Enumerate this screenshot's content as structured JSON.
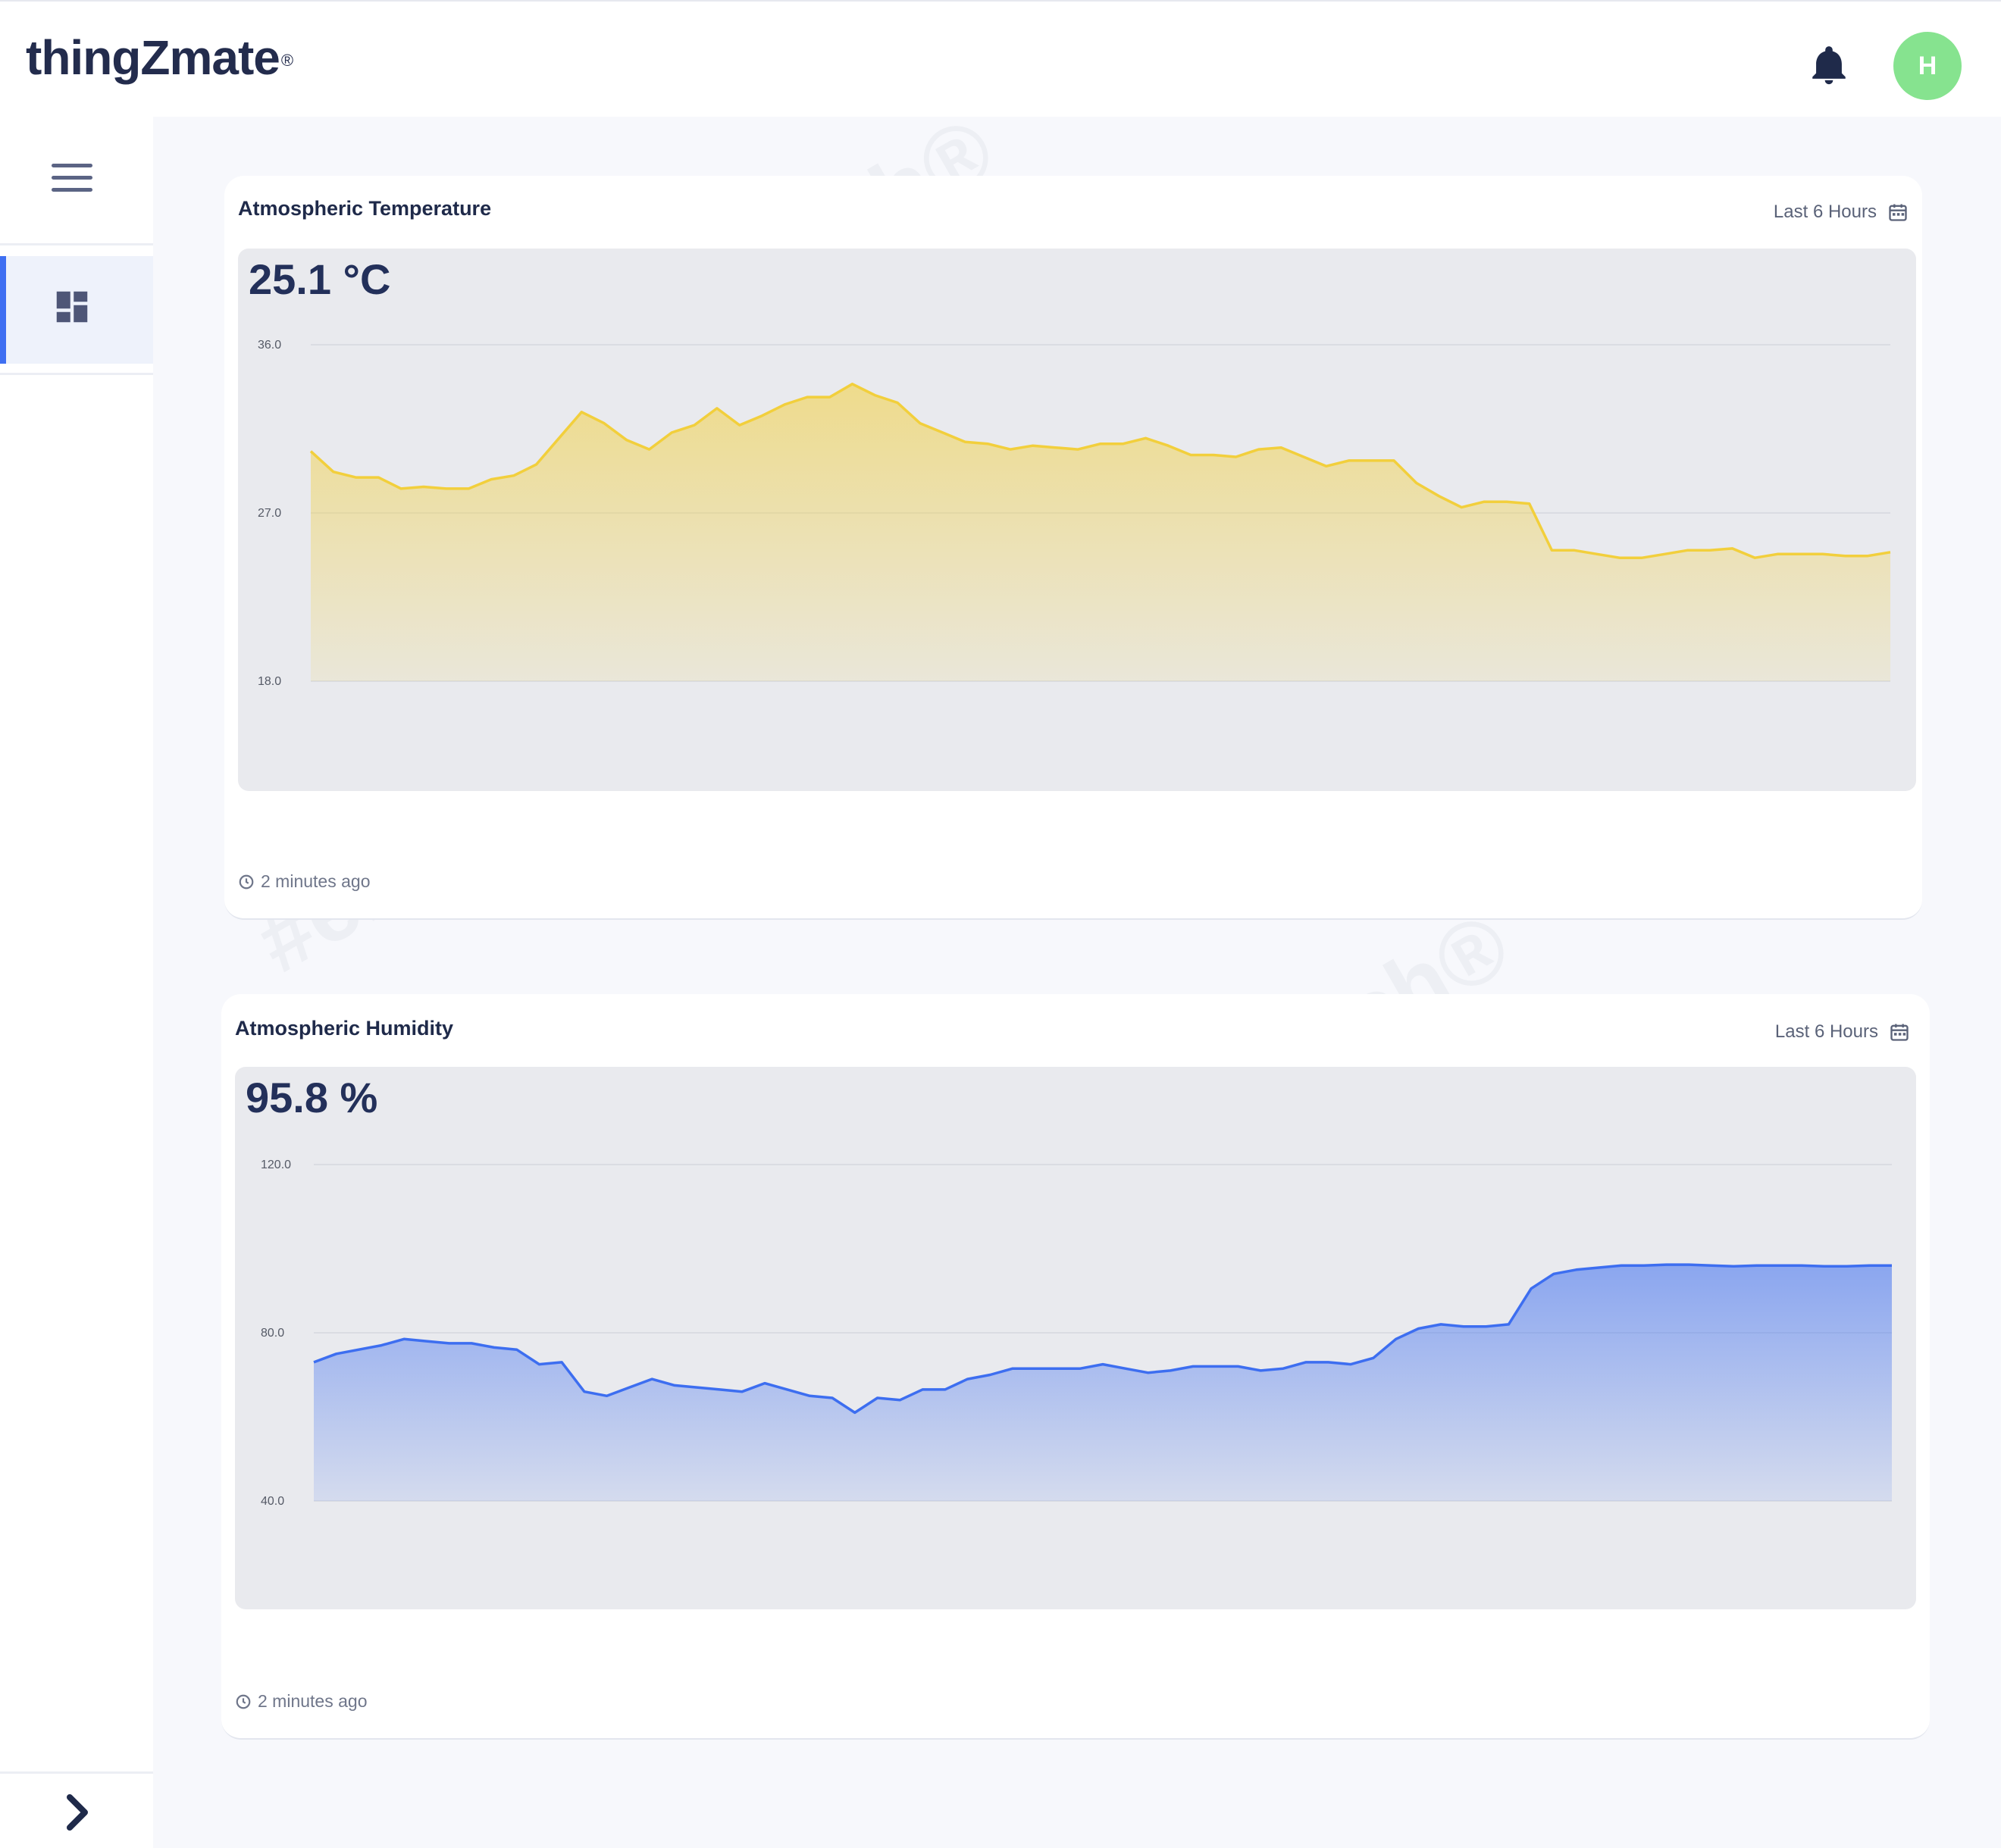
{
  "header": {
    "logo_text": "thingZmate",
    "logo_mark": "®",
    "bell_icon": "bell-icon",
    "avatar_initial": "H",
    "avatar_color": "#86e38f"
  },
  "sidebar": {
    "menu_icon": "hamburger-menu-icon",
    "items": [
      {
        "icon": "dashboard-icon",
        "active": true
      }
    ],
    "expand_icon": "chevron-right-icon"
  },
  "watermark": "#enthutech®",
  "cards": [
    {
      "title": "Atmospheric Temperature",
      "range_label": "Last 6 Hours",
      "value": "25.1 °C",
      "updated": "2 minutes ago",
      "color": "#f2cf3c",
      "chart_data": {
        "type": "area",
        "title": "Atmospheric Temperature",
        "ylim": [
          18.0,
          36.0
        ],
        "yticks": [
          "36.0",
          "27.0",
          "18.0"
        ],
        "grid": true,
        "series": [
          {
            "values": [
              30.3,
              29.2,
              28.9,
              28.9,
              28.3,
              28.4,
              28.3,
              28.3,
              28.8,
              29.0,
              29.6,
              31.0,
              32.4,
              31.8,
              30.9,
              30.4,
              31.3,
              31.7,
              32.6,
              31.7,
              32.2,
              32.8,
              33.2,
              33.2,
              33.9,
              33.3,
              32.9,
              31.8,
              31.3,
              30.8,
              30.7,
              30.4,
              30.6,
              30.5,
              30.4,
              30.7,
              30.7,
              31.0,
              30.6,
              30.1,
              30.1,
              30.0,
              30.4,
              30.5,
              30.0,
              29.5,
              29.8,
              29.8,
              29.8,
              28.6,
              27.9,
              27.3,
              27.6,
              27.6,
              27.5,
              25.0,
              25.0,
              24.8,
              24.6,
              24.6,
              24.8,
              25.0,
              25.0,
              25.1,
              24.6,
              24.8,
              24.8,
              24.8,
              24.7,
              24.7,
              24.9
            ]
          }
        ]
      }
    },
    {
      "title": "Atmospheric Humidity",
      "range_label": "Last 6 Hours",
      "value": "95.8 %",
      "updated": "2 minutes ago",
      "color": "#3d6ef0",
      "chart_data": {
        "type": "area",
        "title": "Atmospheric Humidity",
        "ylim": [
          40.0,
          120.0
        ],
        "yticks": [
          "120.0",
          "80.0",
          "40.0"
        ],
        "grid": true,
        "series": [
          {
            "values": [
              73.0,
              75.0,
              76.0,
              77.0,
              78.5,
              78.0,
              77.5,
              77.5,
              76.5,
              76.0,
              72.5,
              73.0,
              66.0,
              65.0,
              67.0,
              69.0,
              67.5,
              67.0,
              66.5,
              66.0,
              68.0,
              66.5,
              65.0,
              64.5,
              61.0,
              64.5,
              64.0,
              66.5,
              66.5,
              69.0,
              70.0,
              71.5,
              71.5,
              71.5,
              71.5,
              72.5,
              71.5,
              70.5,
              71.0,
              72.0,
              72.0,
              72.0,
              71.0,
              71.5,
              73.0,
              73.0,
              72.5,
              74.0,
              78.5,
              81.0,
              82.0,
              81.5,
              81.5,
              82.0,
              90.5,
              94.0,
              95.0,
              95.5,
              96.0,
              96.0,
              96.2,
              96.2,
              96.0,
              95.8,
              96.0,
              96.0,
              96.0,
              95.8,
              95.8,
              96.0,
              96.0
            ]
          }
        ]
      }
    }
  ]
}
